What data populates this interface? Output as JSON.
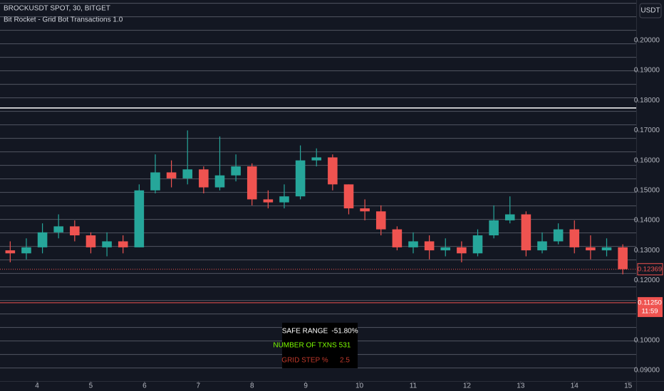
{
  "header": {
    "symbol": "BROCKUSDT SPOT, 30, BITGET",
    "indicator": "Bit Rocket - Grid Bot Transactions 1.0",
    "currency_button": "USDT"
  },
  "chart_data": {
    "type": "candlestick",
    "x": [
      3.5,
      3.8,
      4.1,
      4.4,
      4.7,
      5.0,
      5.3,
      5.6,
      5.9,
      6.2,
      6.5,
      6.8,
      7.1,
      7.4,
      7.7,
      8.0,
      8.3,
      8.6,
      8.9,
      9.2,
      9.5,
      9.8,
      10.1,
      10.4,
      10.7,
      11.0,
      11.3,
      11.6,
      11.9,
      12.2,
      12.5,
      12.8,
      13.1,
      13.4,
      13.7,
      14.0,
      14.3,
      14.6,
      14.9
    ],
    "open": [
      0.13,
      0.129,
      0.131,
      0.136,
      0.138,
      0.135,
      0.131,
      0.133,
      0.131,
      0.15,
      0.156,
      0.154,
      0.157,
      0.151,
      0.155,
      0.158,
      0.147,
      0.146,
      0.148,
      0.16,
      0.161,
      0.152,
      0.144,
      0.143,
      0.137,
      0.131,
      0.133,
      0.13,
      0.131,
      0.129,
      0.135,
      0.14,
      0.142,
      0.13,
      0.133,
      0.137,
      0.131,
      0.13,
      0.131
    ],
    "high": [
      0.133,
      0.134,
      0.139,
      0.142,
      0.14,
      0.136,
      0.136,
      0.135,
      0.152,
      0.162,
      0.16,
      0.17,
      0.158,
      0.168,
      0.162,
      0.159,
      0.15,
      0.152,
      0.165,
      0.164,
      0.162,
      0.152,
      0.147,
      0.145,
      0.138,
      0.136,
      0.135,
      0.134,
      0.133,
      0.137,
      0.145,
      0.148,
      0.143,
      0.136,
      0.139,
      0.14,
      0.135,
      0.134,
      0.132
    ],
    "low": [
      0.126,
      0.127,
      0.129,
      0.134,
      0.133,
      0.129,
      0.128,
      0.129,
      0.131,
      0.149,
      0.151,
      0.152,
      0.149,
      0.15,
      0.153,
      0.145,
      0.144,
      0.144,
      0.147,
      0.158,
      0.15,
      0.142,
      0.14,
      0.135,
      0.13,
      0.129,
      0.127,
      0.128,
      0.126,
      0.128,
      0.134,
      0.139,
      0.128,
      0.129,
      0.132,
      0.129,
      0.127,
      0.128,
      0.122
    ],
    "close": [
      0.129,
      0.131,
      0.136,
      0.138,
      0.135,
      0.131,
      0.133,
      0.131,
      0.15,
      0.156,
      0.154,
      0.157,
      0.151,
      0.155,
      0.158,
      0.147,
      0.146,
      0.148,
      0.16,
      0.161,
      0.152,
      0.144,
      0.143,
      0.137,
      0.131,
      0.133,
      0.13,
      0.131,
      0.129,
      0.135,
      0.14,
      0.142,
      0.13,
      0.133,
      0.137,
      0.131,
      0.13,
      0.131,
      0.1237
    ],
    "up_color": "#26a69a",
    "down_color": "#ef5350",
    "xlim": [
      3.31,
      15.15
    ],
    "xticks": [
      4,
      5,
      6,
      7,
      8,
      9,
      10,
      11,
      12,
      13,
      14,
      15
    ],
    "ylim": [
      0.0864,
      0.2135
    ],
    "yticks": [
      {
        "value": 0.09,
        "label": "0.09000"
      },
      {
        "value": 0.1,
        "label": "0.10000"
      },
      {
        "value": 0.12,
        "label": "0.12000"
      },
      {
        "value": 0.13,
        "label": "0.13000"
      },
      {
        "value": 0.14,
        "label": "0.14000"
      },
      {
        "value": 0.15,
        "label": "0.15000"
      },
      {
        "value": 0.16,
        "label": "0.16000"
      },
      {
        "value": 0.17,
        "label": "0.17000"
      },
      {
        "value": 0.18,
        "label": "0.18000"
      },
      {
        "value": 0.19,
        "label": "0.19000"
      },
      {
        "value": 0.2,
        "label": "0.20000"
      }
    ],
    "upper_line": 0.1775,
    "last_price": 0.12369,
    "stop_line": {
      "value": 0.1125,
      "label": "0.11250"
    },
    "countdown": "11:59"
  },
  "table": {
    "rows": [
      [
        "SAFE RANGE",
        "-51.80%"
      ],
      [
        "NUMBER OF TXNS",
        "531"
      ],
      [
        "GRID STEP %",
        "2.5"
      ]
    ]
  }
}
